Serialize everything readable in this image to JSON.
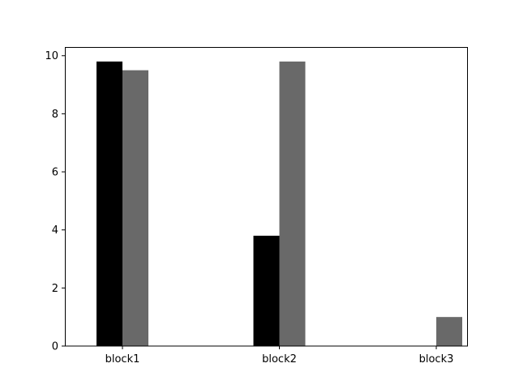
{
  "chart_data": {
    "type": "bar",
    "categories": [
      "block1",
      "block2",
      "block3"
    ],
    "series": [
      {
        "values": [
          9.8,
          3.8,
          0
        ],
        "color": "#000000"
      },
      {
        "values": [
          9.5,
          9.8,
          1.0
        ],
        "color": "#696969"
      }
    ],
    "ylim": [
      0,
      10.3
    ],
    "yticks": [
      0,
      2,
      4,
      6,
      8,
      10
    ],
    "grid": false,
    "legend": "none"
  }
}
